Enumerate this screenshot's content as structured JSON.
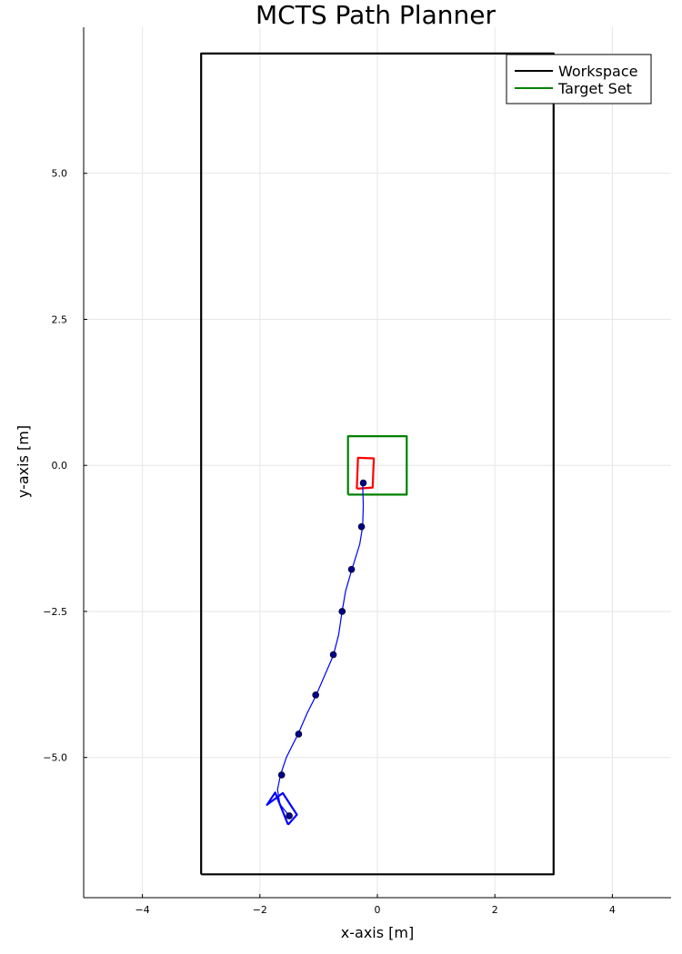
{
  "chart_data": {
    "type": "line",
    "title": "MCTS Path Planner",
    "xlabel": "x-axis [m]",
    "ylabel": "y-axis [m]",
    "xlim": [
      -5,
      5
    ],
    "ylim": [
      -7.4,
      7.5
    ],
    "xticks": [
      -4,
      -2,
      0,
      2,
      4
    ],
    "xtick_labels": [
      "−4",
      "−2",
      "0",
      "2",
      "4"
    ],
    "yticks": [
      5.0,
      2.5,
      0.0,
      -2.5,
      -5.0
    ],
    "ytick_labels": [
      "5.0",
      "2.5",
      "0.0",
      "−2.5",
      "−5.0"
    ],
    "grid": true,
    "legend": {
      "position": "top-right",
      "entries": [
        {
          "name": "Workspace",
          "color": "#000000"
        },
        {
          "name": "Target Set",
          "color": "#008000"
        }
      ]
    },
    "series": [
      {
        "name": "Workspace",
        "color": "#000000",
        "x": [
          -3,
          3,
          3,
          -3,
          -3
        ],
        "y": [
          -7.0,
          -7.0,
          7.05,
          7.05,
          -7.0
        ]
      },
      {
        "name": "Target Set",
        "color": "#008000",
        "x": [
          -0.5,
          0.5,
          0.5,
          -0.5,
          -0.5
        ],
        "y": [
          -0.5,
          -0.5,
          0.5,
          0.5,
          -0.5
        ]
      },
      {
        "name": "",
        "color": "#ff0000",
        "x": [
          -0.35,
          -0.08,
          -0.06,
          -0.33,
          -0.35
        ],
        "y": [
          -0.4,
          -0.38,
          0.12,
          0.13,
          -0.4
        ]
      },
      {
        "name": "",
        "color": "#0000ff",
        "x": [
          -1.52,
          -1.37,
          -1.61,
          -1.88,
          -1.74,
          -1.52
        ],
        "y": [
          -6.15,
          -5.98,
          -5.61,
          -5.81,
          -5.6,
          -6.15
        ]
      },
      {
        "name": "",
        "color": "#0000ff",
        "x": [
          -1.5,
          -1.66,
          -1.7,
          -1.65,
          -1.55,
          -1.45,
          -1.35,
          -1.2,
          -1.05,
          -0.9,
          -0.75,
          -0.66,
          -0.6,
          -0.54,
          -0.44,
          -0.3,
          -0.25,
          -0.24,
          -0.25
        ],
        "y": [
          -6.0,
          -5.8,
          -5.55,
          -5.3,
          -5.0,
          -4.8,
          -4.6,
          -4.25,
          -3.95,
          -3.6,
          -3.25,
          -2.9,
          -2.5,
          -2.15,
          -1.8,
          -1.35,
          -1.05,
          -0.7,
          -0.3
        ]
      }
    ],
    "points": {
      "color": "#00008b",
      "x": [
        -1.5,
        -1.63,
        -1.34,
        -1.05,
        -0.75,
        -0.6,
        -0.44,
        -0.27,
        -0.24
      ],
      "y": [
        -6.0,
        -5.3,
        -4.6,
        -3.93,
        -3.24,
        -2.5,
        -1.78,
        -1.05,
        -0.3
      ]
    }
  }
}
